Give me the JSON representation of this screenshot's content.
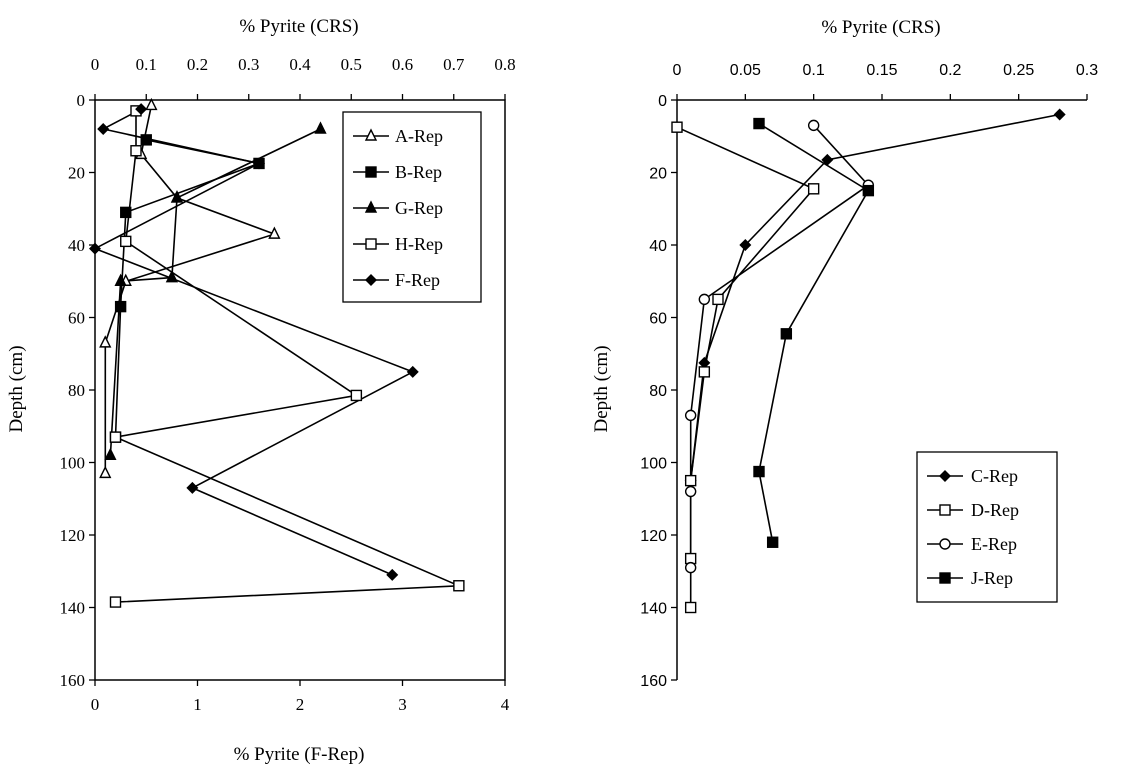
{
  "chart_data": [
    {
      "type": "line",
      "top_axis_title": "% Pyrite (CRS)",
      "bottom_axis_title": "% Pyrite (F-Rep)",
      "ylabel": "Depth (cm)",
      "top_xlim": [
        0,
        0.8
      ],
      "top_ticks": [
        "0",
        "0.1",
        "0.2",
        "0.3",
        "0.4",
        "0.5",
        "0.6",
        "0.7",
        "0.8"
      ],
      "bottom_xlim": [
        0,
        4
      ],
      "bottom_ticks": [
        "0",
        "1",
        "2",
        "3",
        "4"
      ],
      "ylim": [
        0,
        160
      ],
      "y_inverted": true,
      "y_ticks": [
        "0",
        "20",
        "40",
        "60",
        "80",
        "100",
        "120",
        "140",
        "160"
      ],
      "grid": false,
      "legend_position": "top-right",
      "series": [
        {
          "name": "A-Rep",
          "marker": "open-triangle",
          "axis": "top",
          "points": [
            [
              0.11,
              1.5
            ],
            [
              0.09,
              15
            ],
            [
              0.16,
              27
            ],
            [
              0.35,
              37
            ],
            [
              0.06,
              50
            ],
            [
              0.02,
              67
            ],
            [
              0.02,
              103
            ]
          ]
        },
        {
          "name": "B-Rep",
          "marker": "filled-square",
          "axis": "top",
          "points": [
            [
              0.1,
              11
            ],
            [
              0.32,
              17.5
            ],
            [
              0.06,
              31
            ],
            [
              0.05,
              57
            ],
            [
              0.04,
              93
            ]
          ]
        },
        {
          "name": "G-Rep",
          "marker": "filled-triangle",
          "axis": "top",
          "points": [
            [
              0.44,
              8
            ],
            [
              0.16,
              27
            ],
            [
              0.15,
              49
            ],
            [
              0.05,
              50
            ],
            [
              0.03,
              98
            ]
          ]
        },
        {
          "name": "H-Rep",
          "marker": "open-square",
          "axis": "top",
          "points": [
            [
              0.08,
              3
            ],
            [
              0.08,
              14
            ],
            [
              0.06,
              39
            ],
            [
              0.51,
              81.5
            ],
            [
              0.04,
              93
            ],
            [
              0.71,
              134
            ],
            [
              0.04,
              138.5
            ]
          ]
        },
        {
          "name": "F-Rep",
          "marker": "filled-diamond",
          "axis": "bottom",
          "points": [
            [
              0.45,
              2.5
            ],
            [
              0.08,
              8
            ],
            [
              1.6,
              17.5
            ],
            [
              0.0,
              41
            ],
            [
              3.1,
              75
            ],
            [
              0.95,
              107
            ],
            [
              2.9,
              131
            ]
          ]
        }
      ]
    },
    {
      "type": "line",
      "top_axis_title": "% Pyrite (CRS)",
      "ylabel": "Depth (cm)",
      "xlim": [
        0,
        0.3
      ],
      "x_ticks": [
        "0",
        "0.05",
        "0.1",
        "0.15",
        "0.2",
        "0.25",
        "0.3"
      ],
      "ylim": [
        0,
        160
      ],
      "y_inverted": true,
      "y_ticks": [
        "0",
        "20",
        "40",
        "60",
        "80",
        "100",
        "120",
        "140",
        "160"
      ],
      "grid": false,
      "legend_position": "bottom-right",
      "series": [
        {
          "name": "C-Rep",
          "marker": "filled-diamond",
          "points": [
            [
              0.28,
              4
            ],
            [
              0.11,
              16.5
            ],
            [
              0.05,
              40
            ],
            [
              0.02,
              72.5
            ],
            [
              0.01,
              105
            ]
          ]
        },
        {
          "name": "D-Rep",
          "marker": "open-square",
          "points": [
            [
              0.0,
              7.5
            ],
            [
              0.1,
              24.5
            ],
            [
              0.03,
              55
            ],
            [
              0.02,
              75
            ],
            [
              0.01,
              105
            ],
            [
              0.01,
              126.5
            ],
            [
              0.01,
              140
            ]
          ]
        },
        {
          "name": "E-Rep",
          "marker": "open-circle",
          "points": [
            [
              0.1,
              7
            ],
            [
              0.14,
              23.5
            ],
            [
              0.02,
              55
            ],
            [
              0.01,
              87
            ],
            [
              0.01,
              108
            ],
            [
              0.01,
              129
            ]
          ]
        },
        {
          "name": "J-Rep",
          "marker": "filled-square",
          "points": [
            [
              0.06,
              6.5
            ],
            [
              0.14,
              25
            ],
            [
              0.08,
              64.5
            ],
            [
              0.06,
              102.5
            ],
            [
              0.07,
              122
            ]
          ]
        }
      ]
    }
  ]
}
